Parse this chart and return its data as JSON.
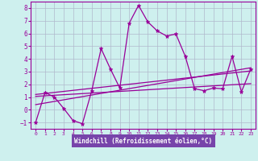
{
  "xlabel": "Windchill (Refroidissement éolien,°C)",
  "xlim": [
    -0.5,
    23.5
  ],
  "ylim": [
    -1.5,
    8.5
  ],
  "yticks": [
    -1,
    0,
    1,
    2,
    3,
    4,
    5,
    6,
    7,
    8
  ],
  "xticks": [
    0,
    1,
    2,
    3,
    4,
    5,
    6,
    7,
    8,
    9,
    10,
    11,
    12,
    13,
    14,
    15,
    16,
    17,
    18,
    19,
    20,
    21,
    22,
    23
  ],
  "bg_color": "#cef0ee",
  "plot_bg": "#cef0ee",
  "line_color": "#990099",
  "grid_color": "#b0b8cc",
  "xlabel_bg": "#7744aa",
  "line1_x": [
    0,
    1,
    2,
    3,
    4,
    5,
    6,
    7,
    8,
    9,
    10,
    11,
    12,
    13,
    14,
    15,
    16,
    17,
    18,
    19,
    20,
    21,
    22,
    23
  ],
  "line1_y": [
    -1.0,
    1.35,
    1.0,
    0.1,
    -0.85,
    -1.1,
    1.5,
    4.8,
    3.2,
    1.7,
    6.8,
    8.2,
    6.9,
    6.2,
    5.8,
    5.95,
    4.2,
    1.65,
    1.5,
    1.7,
    1.65,
    4.2,
    1.4,
    3.2
  ],
  "line2_x": [
    0,
    23
  ],
  "line2_y": [
    1.05,
    2.05
  ],
  "line3_x": [
    0,
    23
  ],
  "line3_y": [
    0.4,
    3.3
  ],
  "line4_x": [
    0,
    23
  ],
  "line4_y": [
    1.2,
    3.05
  ]
}
